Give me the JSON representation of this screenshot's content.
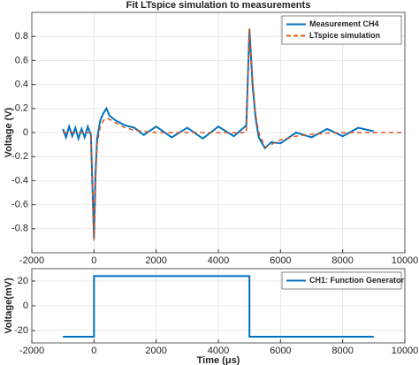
{
  "chart_data": [
    {
      "type": "line",
      "title": "Fit LTspice simulation to measurements",
      "ylabel": "Voltage (V)",
      "x": [
        -1000,
        -900,
        -800,
        -700,
        -600,
        -500,
        -400,
        -300,
        -200,
        -100,
        0,
        50,
        100,
        200,
        300,
        400,
        500,
        700,
        1000,
        1300,
        1600,
        2000,
        2500,
        3000,
        3500,
        4000,
        4500,
        4900,
        5000,
        5100,
        5200,
        5300,
        5500,
        5700,
        6000,
        6500,
        7000,
        7500,
        8000,
        8500,
        9000,
        10000
      ],
      "series": [
        {
          "name": "Measurement CH4",
          "color": "#0072bd",
          "style": "solid",
          "values": [
            0.03,
            -0.04,
            0.05,
            -0.03,
            0.04,
            -0.05,
            0.03,
            -0.04,
            0.05,
            -0.02,
            -0.88,
            -0.35,
            -0.05,
            0.1,
            0.16,
            0.2,
            0.14,
            0.1,
            0.06,
            0.04,
            -0.02,
            0.05,
            -0.04,
            0.04,
            -0.05,
            0.05,
            -0.03,
            0.06,
            0.86,
            0.4,
            0.12,
            -0.04,
            -0.13,
            -0.08,
            -0.09,
            0.0,
            -0.04,
            0.03,
            -0.03,
            0.04,
            0.01,
            null
          ]
        },
        {
          "name": "LTspice simulation",
          "color": "#d95319",
          "style": "dashed",
          "values": [
            0,
            0,
            0,
            0,
            0,
            0,
            0,
            0,
            0,
            0,
            -0.9,
            -0.4,
            -0.1,
            0.05,
            0.1,
            0.12,
            0.11,
            0.08,
            0.04,
            0.02,
            0.01,
            0,
            0,
            0,
            0,
            0,
            0,
            0,
            0.87,
            0.45,
            0.15,
            0,
            -0.12,
            -0.1,
            -0.06,
            -0.03,
            -0.015,
            -0.005,
            0,
            0,
            0,
            0
          ]
        }
      ],
      "xlim": [
        -2000,
        10000
      ],
      "xticks": [
        -2000,
        0,
        2000,
        4000,
        6000,
        8000,
        10000
      ],
      "ylim": [
        -1,
        1
      ],
      "yticks": [
        -0.8,
        -0.6,
        -0.4,
        -0.2,
        0,
        0.2,
        0.4,
        0.6,
        0.8
      ],
      "grid": true,
      "legend": "northeast"
    },
    {
      "type": "line",
      "xlabel": "Time (μs)",
      "ylabel": "Voltage(mV)",
      "x": [
        -1000,
        0,
        0,
        5000,
        5000,
        9000
      ],
      "series": [
        {
          "name": "CH1: Function Generator",
          "color": "#0072bd",
          "style": "solid",
          "values": [
            -25,
            -25,
            24,
            24,
            -25,
            -25
          ]
        }
      ],
      "xlim": [
        -2000,
        10000
      ],
      "xticks": [
        -2000,
        0,
        2000,
        4000,
        6000,
        8000,
        10000
      ],
      "ylim": [
        -30,
        30
      ],
      "yticks": [
        -20,
        0,
        20
      ],
      "grid": true,
      "legend": "northeast"
    }
  ]
}
